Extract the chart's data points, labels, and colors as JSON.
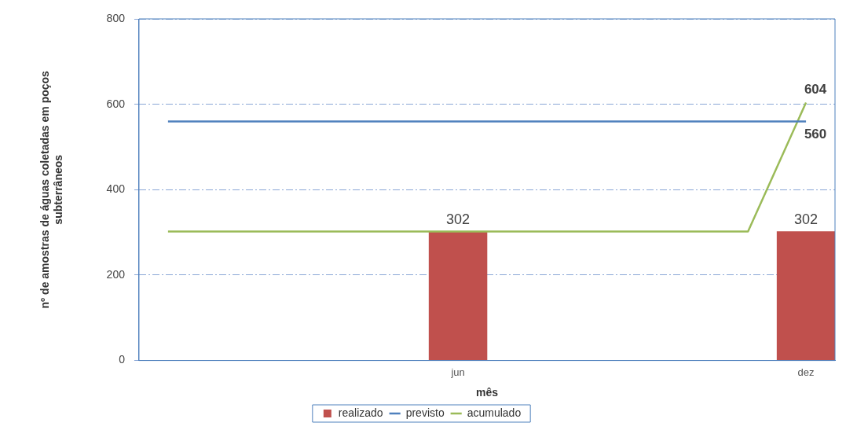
{
  "chart_data": {
    "type": "bar",
    "xlabel": "mês",
    "ylabel": "nº de amostras de águas coletadas em poços subterrâneos",
    "categories": [
      null,
      null,
      null,
      null,
      null,
      "jun",
      null,
      null,
      null,
      null,
      null,
      "dez"
    ],
    "series": [
      {
        "name": "realizado",
        "color": "#c0504d",
        "values": [
          null,
          null,
          null,
          null,
          null,
          302,
          null,
          null,
          null,
          null,
          null,
          302
        ],
        "value_labels": [
          null,
          null,
          null,
          null,
          null,
          "302",
          null,
          null,
          null,
          null,
          null,
          "302"
        ]
      },
      {
        "name": "previsto",
        "type": "line",
        "color": "#4f81bd",
        "values": [
          560,
          560,
          560,
          560,
          560,
          560,
          560,
          560,
          560,
          560,
          560,
          560
        ],
        "value_labels": [
          null,
          null,
          null,
          null,
          null,
          null,
          null,
          null,
          null,
          null,
          null,
          "560"
        ]
      },
      {
        "name": "acumulado",
        "type": "line",
        "color": "#9bbb59",
        "values": [
          302,
          302,
          302,
          302,
          302,
          302,
          302,
          302,
          302,
          302,
          302,
          604
        ],
        "value_labels": [
          null,
          null,
          null,
          null,
          null,
          null,
          null,
          null,
          null,
          null,
          null,
          "604"
        ]
      }
    ],
    "ylim": [
      0,
      800
    ],
    "yticks": [
      0,
      200,
      400,
      600,
      800
    ],
    "grid": "y",
    "legend": "bottom",
    "marker": "none"
  }
}
